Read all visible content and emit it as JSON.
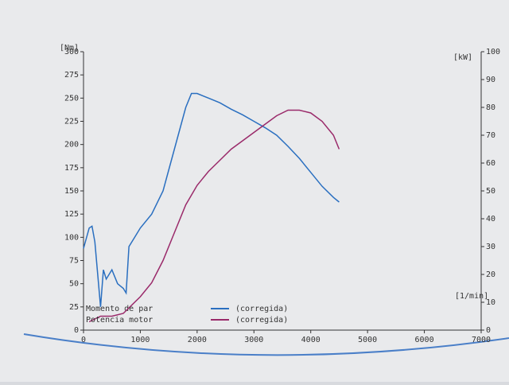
{
  "chart_data": {
    "type": "line",
    "x_label": "[1/min]",
    "y_label": "[Nm]",
    "y2_label": "[kW]",
    "xlim": [
      0,
      7000
    ],
    "xticks": [
      0,
      1000,
      2000,
      3000,
      4000,
      5000,
      6000,
      7000
    ],
    "ylim": [
      0,
      300
    ],
    "yticks": [
      0,
      25,
      50,
      75,
      100,
      125,
      150,
      175,
      200,
      225,
      250,
      275,
      300
    ],
    "y2lim": [
      0,
      100
    ],
    "y2ticks": [
      0,
      10,
      20,
      30,
      40,
      50,
      60,
      70,
      80,
      90,
      100
    ],
    "series": [
      {
        "name": "Momento de par",
        "note": "(corregida)",
        "color": "#2a6fc0",
        "x": [
          0,
          100,
          150,
          200,
          250,
          300,
          350,
          400,
          500,
          600,
          700,
          750,
          800,
          900,
          1000,
          1200,
          1400,
          1600,
          1800,
          1900,
          2000,
          2200,
          2400,
          2600,
          2800,
          3000,
          3200,
          3400,
          3600,
          3800,
          4000,
          4200,
          4400,
          4500
        ],
        "values": [
          88,
          110,
          112,
          95,
          60,
          25,
          65,
          55,
          65,
          50,
          45,
          40,
          90,
          100,
          110,
          125,
          150,
          195,
          240,
          255,
          255,
          250,
          245,
          238,
          232,
          225,
          218,
          210,
          198,
          185,
          170,
          155,
          143,
          138
        ]
      },
      {
        "name": "Potencia motor",
        "note": "(corregida)",
        "color": "#9a2a6a",
        "axis": "y2",
        "x": [
          100,
          300,
          500,
          700,
          800,
          1000,
          1200,
          1400,
          1600,
          1800,
          2000,
          2200,
          2400,
          2600,
          2800,
          3000,
          3200,
          3400,
          3600,
          3800,
          4000,
          4200,
          4400,
          4500
        ],
        "values": [
          3,
          5,
          5,
          6,
          8,
          12,
          17,
          25,
          35,
          45,
          52,
          57,
          61,
          65,
          68,
          71,
          74,
          77,
          79,
          79,
          78,
          75,
          70,
          65
        ]
      }
    ]
  }
}
